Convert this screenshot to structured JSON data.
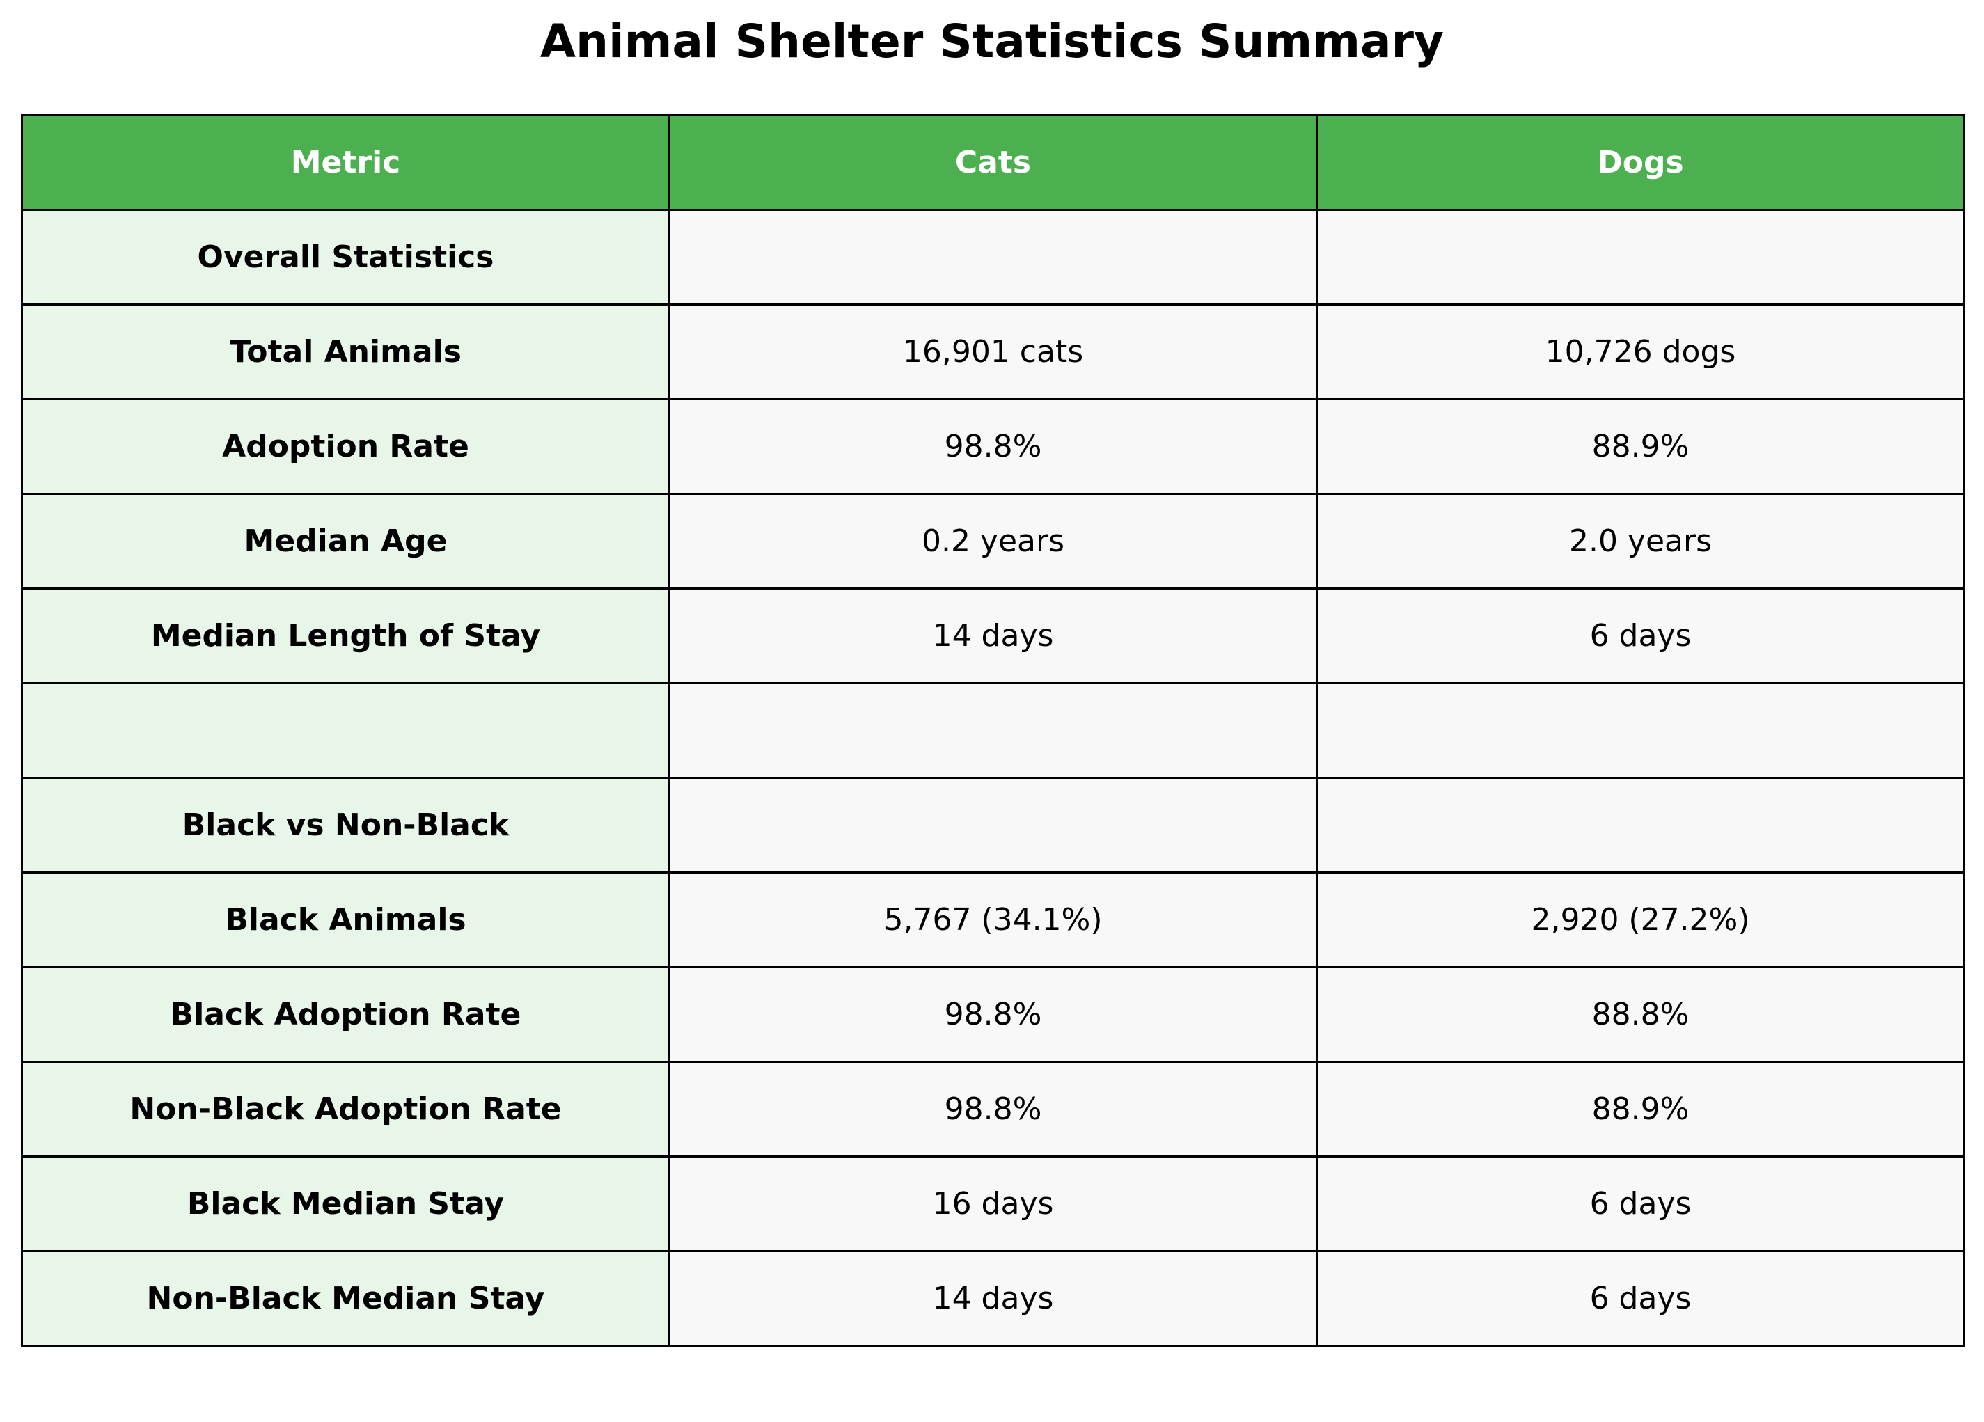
{
  "chart_data": {
    "type": "table",
    "title": "Animal Shelter Statistics Summary",
    "columns": [
      "Metric",
      "Cats",
      "Dogs"
    ],
    "rows": [
      [
        "Overall Statistics",
        "",
        ""
      ],
      [
        "Total Animals",
        "16,901 cats",
        "10,726 dogs"
      ],
      [
        "Adoption Rate",
        "98.8%",
        "88.9%"
      ],
      [
        "Median Age",
        "0.2 years",
        "2.0 years"
      ],
      [
        "Median Length of Stay",
        "14 days",
        "6 days"
      ],
      [
        "",
        "",
        ""
      ],
      [
        "Black vs Non-Black",
        "",
        ""
      ],
      [
        "Black Animals",
        "5,767 (34.1%)",
        "2,920 (27.2%)"
      ],
      [
        "Black Adoption Rate",
        "98.8%",
        "88.8%"
      ],
      [
        "Non-Black Adoption Rate",
        "98.8%",
        "88.9%"
      ],
      [
        "Black Median Stay",
        "16 days",
        "6 days"
      ],
      [
        "Non-Black Median Stay",
        "14 days",
        "6 days"
      ]
    ],
    "colors": {
      "header_bg": "#4caf50",
      "header_text": "#ffffff",
      "metric_bg": "#e8f5e9",
      "value_bg": "#f8f8f8",
      "border": "#000000"
    }
  }
}
